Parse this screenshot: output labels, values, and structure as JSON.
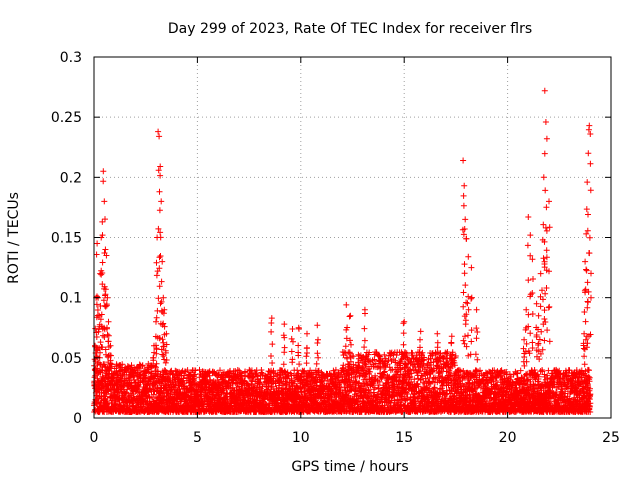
{
  "chart_data": {
    "type": "scatter",
    "title": "Day 299 of 2023, Rate Of TEC Index for receiver flrs",
    "xlabel": "GPS time / hours",
    "ylabel": "ROTI / TECUs",
    "xlim": [
      0,
      25
    ],
    "ylim": [
      0,
      0.3
    ],
    "x_ticks": [
      0,
      5,
      10,
      15,
      20,
      25
    ],
    "y_ticks": [
      0,
      0.05,
      0.1,
      0.15,
      0.2,
      0.25,
      0.3
    ],
    "x_tick_labels": [
      "0",
      "5",
      "10",
      "15",
      "20",
      "25"
    ],
    "y_tick_labels": [
      "0",
      "0.05",
      "0.1",
      "0.15",
      "0.2",
      "0.25",
      "0.3"
    ],
    "grid": true,
    "marker": "+",
    "color": "#ff0000",
    "series": [
      {
        "x": [
          0.05,
          0.1,
          0.15,
          0.2,
          0.25,
          0.3,
          0.35,
          0.4,
          0.45,
          0.5,
          0.55,
          0.6,
          0.65,
          0.7,
          0.8,
          2.9,
          3.0,
          3.05,
          3.1,
          3.15,
          3.2,
          3.25,
          3.3,
          3.35,
          3.4,
          3.5,
          8.6,
          9.2,
          9.6,
          9.9,
          10.3,
          10.8,
          12.2,
          12.4,
          13.1,
          15.0,
          15.8,
          16.6,
          17.3,
          17.85,
          17.9,
          17.95,
          18.0,
          18.1,
          18.25,
          18.5,
          20.8,
          20.9,
          21.0,
          21.1,
          21.2,
          21.4,
          21.5,
          21.6,
          21.7,
          21.75,
          21.8,
          21.85,
          21.9,
          22.0,
          23.7,
          23.75,
          23.8,
          23.85,
          23.9,
          23.95,
          24.0
        ],
        "y": [
          0.06,
          0.1,
          0.145,
          0.1,
          0.085,
          0.12,
          0.15,
          0.163,
          0.205,
          0.18,
          0.14,
          0.135,
          0.1,
          0.08,
          0.06,
          0.06,
          0.08,
          0.15,
          0.238,
          0.234,
          0.209,
          0.18,
          0.13,
          0.1,
          0.09,
          0.07,
          0.083,
          0.078,
          0.074,
          0.075,
          0.07,
          0.077,
          0.094,
          0.085,
          0.09,
          0.08,
          0.072,
          0.07,
          0.068,
          0.214,
          0.193,
          0.165,
          0.149,
          0.134,
          0.125,
          0.09,
          0.065,
          0.09,
          0.167,
          0.152,
          0.132,
          0.095,
          0.085,
          0.12,
          0.148,
          0.2,
          0.272,
          0.246,
          0.232,
          0.18,
          0.07,
          0.13,
          0.153,
          0.196,
          0.22,
          0.243,
          0.236
        ]
      }
    ],
    "baseline_band": [
      {
        "x_start": 0,
        "x_end": 3,
        "y_low": 0.005,
        "y_high": 0.045
      },
      {
        "x_start": 3,
        "x_end": 12,
        "y_low": 0.005,
        "y_high": 0.04
      },
      {
        "x_start": 12,
        "x_end": 17.5,
        "y_low": 0.005,
        "y_high": 0.055
      },
      {
        "x_start": 17.5,
        "x_end": 24,
        "y_low": 0.005,
        "y_high": 0.04
      }
    ]
  }
}
